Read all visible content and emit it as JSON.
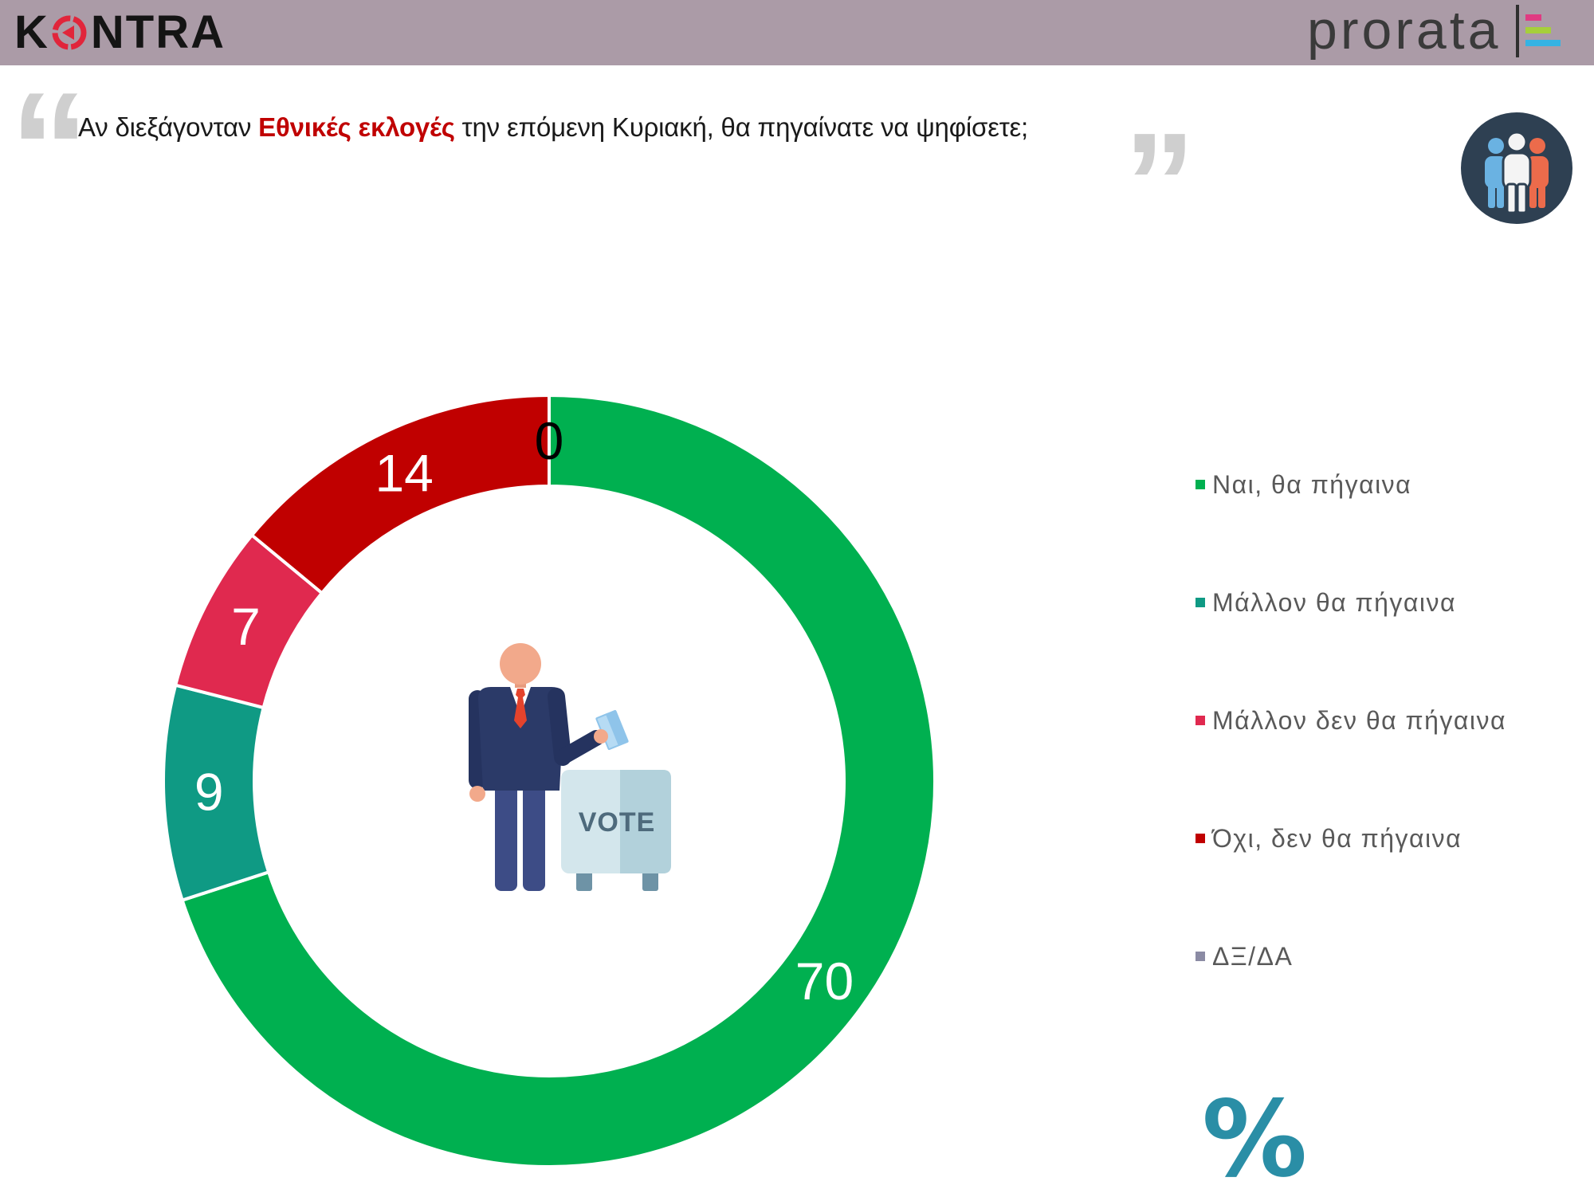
{
  "header": {
    "logo_left": {
      "first": "K",
      "rest": "NTRA"
    },
    "logo_right": {
      "text": "prorata"
    }
  },
  "question": {
    "open_quote": "“",
    "before": "Αν διεξάγονταν ",
    "highlight": "Εθνικές εκλογές",
    "after": " την επόμενη Κυριακή, θα πηγαίνατε να ψηφίσετε;",
    "close_quote": "”"
  },
  "illustration": {
    "box_label": "VOTE"
  },
  "icons": {
    "header_left_mark": "kontra-o-icon",
    "header_right_mark": "prorata-bars-icon",
    "audience": "people-group-icon",
    "center": "voter-ballot-box-icon"
  },
  "colors": {
    "header_background": "#ab9ba7",
    "highlight": "#c00000",
    "legend_text": "#595959",
    "unit": "#2a8ea6"
  },
  "chart_data": {
    "type": "pie",
    "subtype": "donut",
    "categories": [
      "Ναι, θα πήγαινα",
      "Μάλλον θα πήγαινα",
      "Μάλλον δεν θα πήγαινα",
      "Όχι, δεν θα πήγαινα",
      "ΔΞ/ΔΑ"
    ],
    "values": [
      70,
      9,
      7,
      14,
      0
    ],
    "colors": [
      "#00b050",
      "#0f9a84",
      "#e0294f",
      "#c00000",
      "#8b8ba4"
    ],
    "unit": "%",
    "legend_position": "right",
    "data_labels": true
  }
}
